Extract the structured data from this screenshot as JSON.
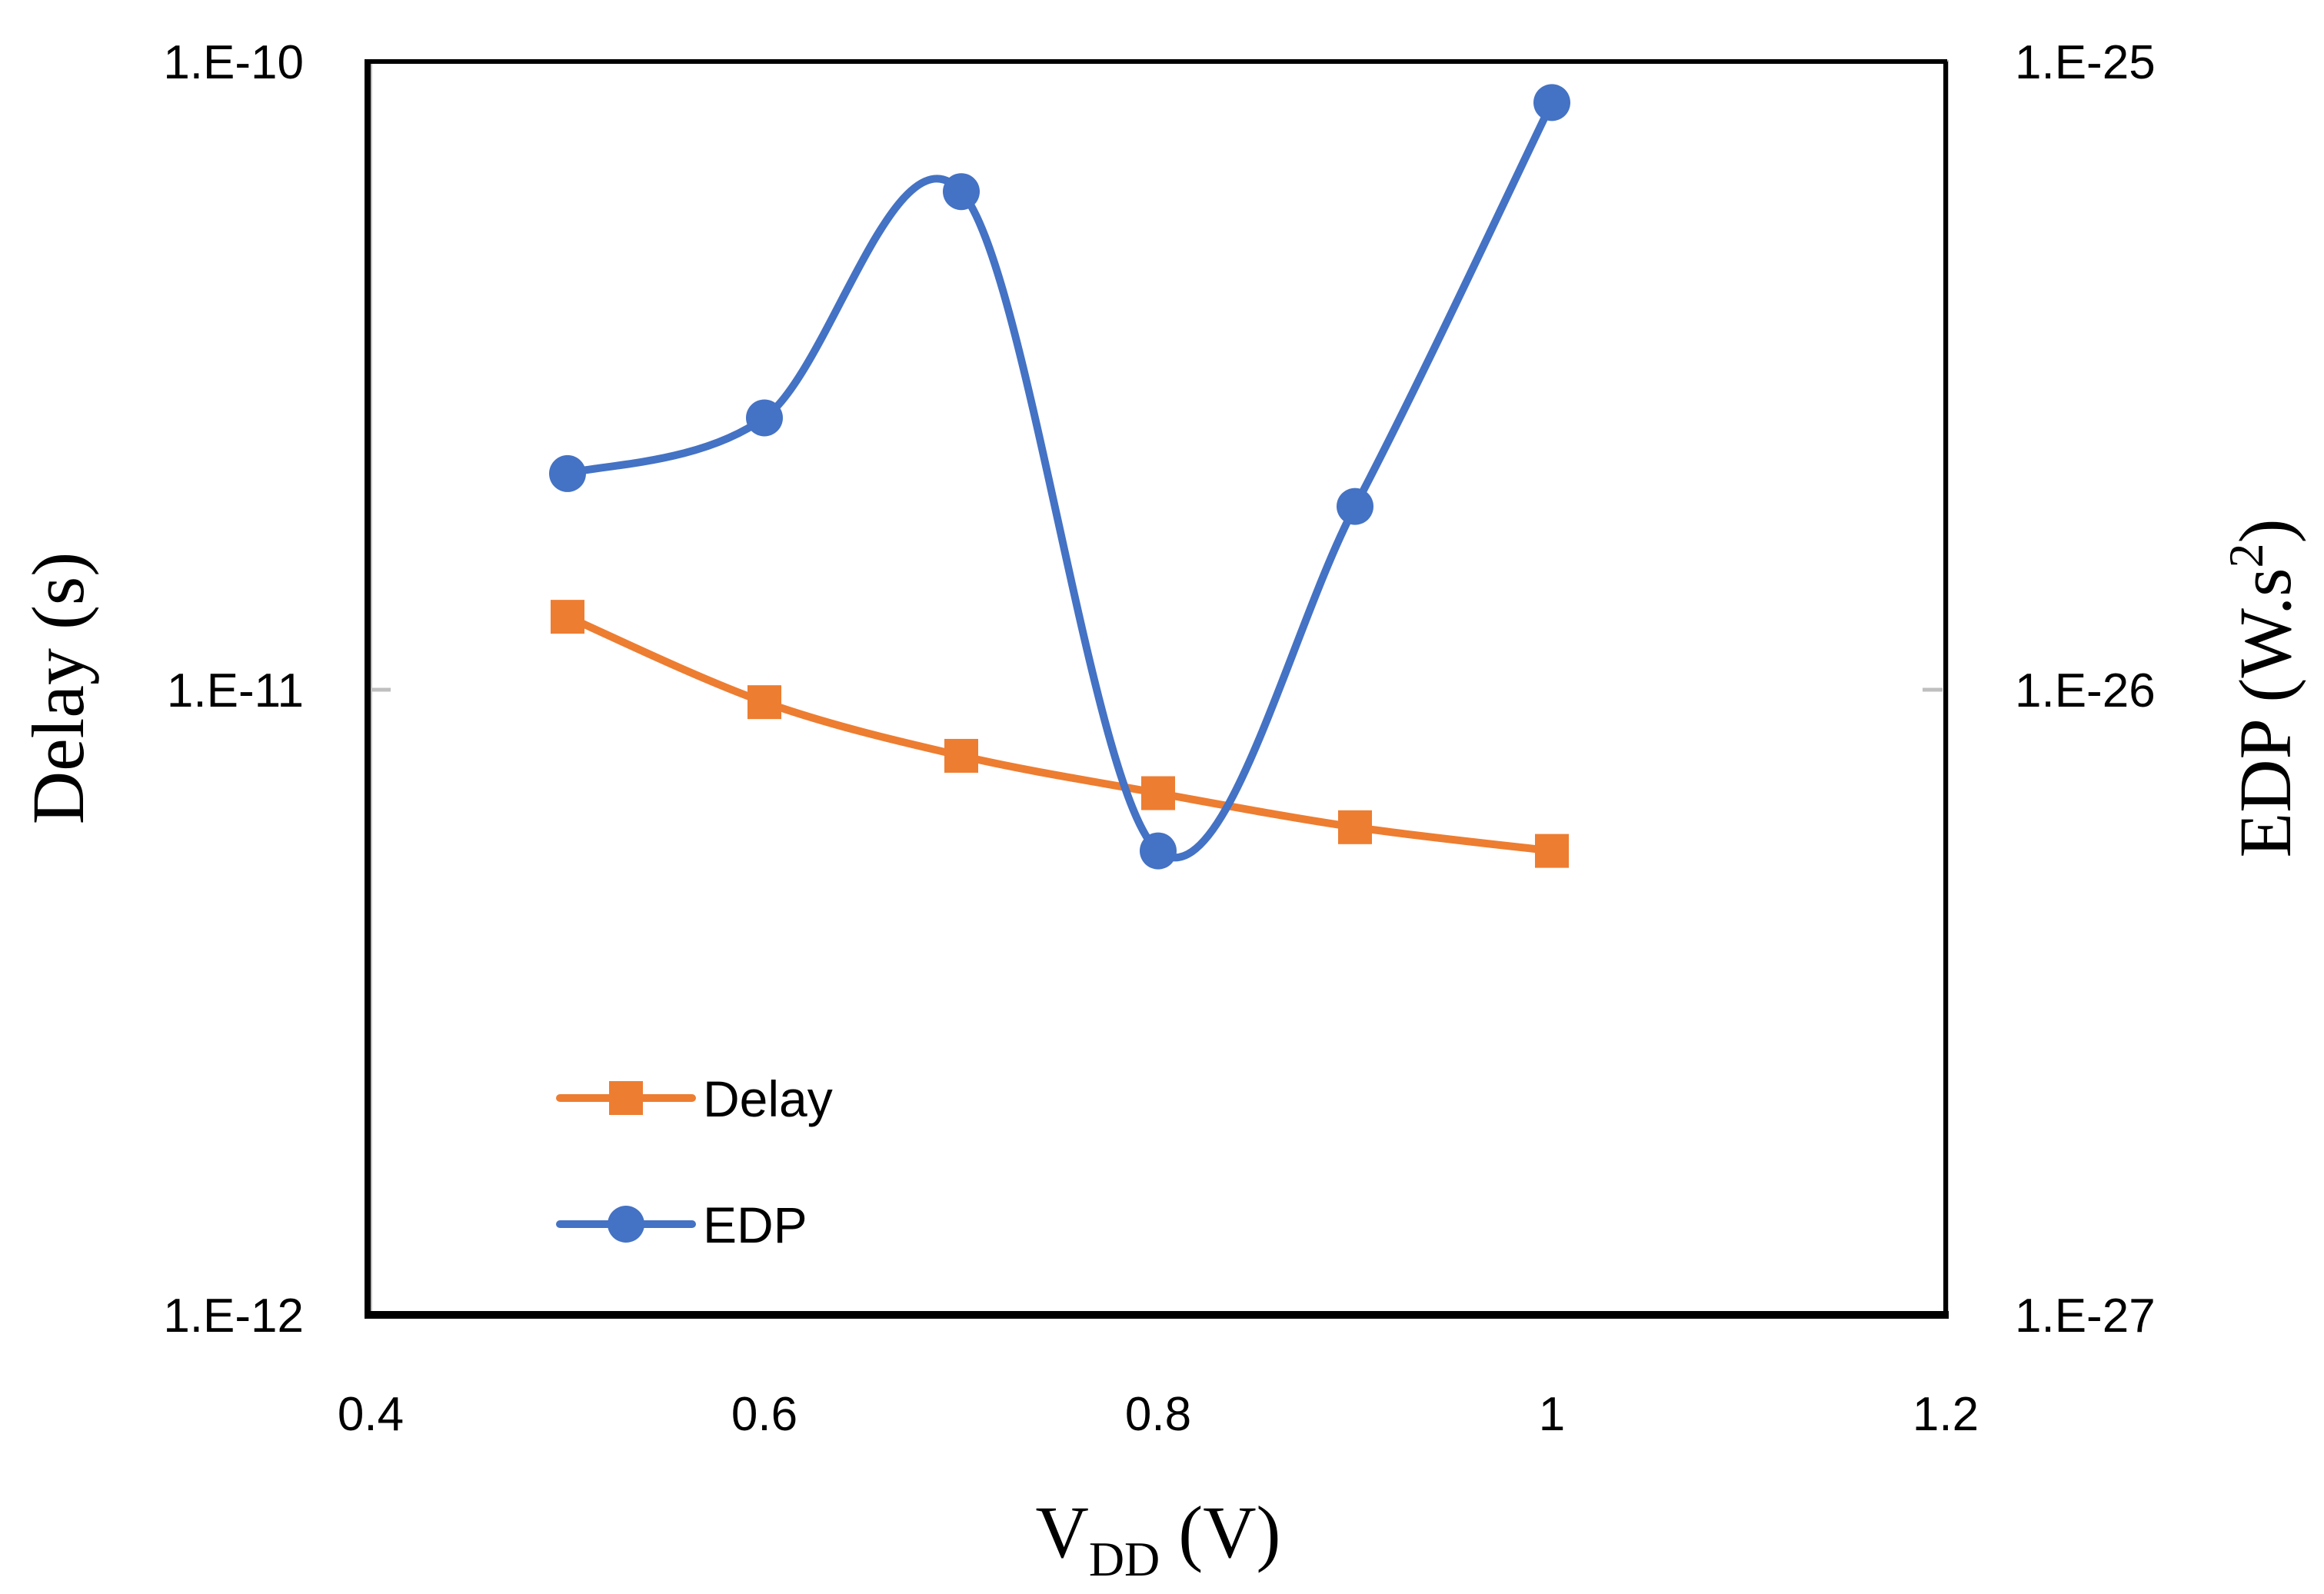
{
  "chart_data": {
    "type": "line",
    "x": [
      0.5,
      0.6,
      0.7,
      0.8,
      0.9,
      1.0
    ],
    "xlabel": {
      "main": "V",
      "subscript": "DD",
      "unit": " (V)"
    },
    "xlim": [
      0.4,
      1.2
    ],
    "xticks": [
      "0.4",
      "0.6",
      "0.8",
      "1",
      "1.2"
    ],
    "y_left": {
      "label": "Delay (s)",
      "scale": "log",
      "lim": [
        1e-12,
        1e-10
      ],
      "ticks": [
        "1.E-12",
        "1.E-11",
        "1.E-10"
      ]
    },
    "y_right": {
      "label": "EDP (W.s",
      "label_sup": "2",
      "label_close": ")",
      "scale": "log",
      "lim": [
        1e-27,
        1e-25
      ],
      "ticks": [
        "1.E-27",
        "1.E-26",
        "1.E-25"
      ]
    },
    "series": [
      {
        "name": "Delay",
        "axis": "left",
        "color": "#ED7D31",
        "marker": "square",
        "smooth": true,
        "values": [
          1.3e-11,
          9.5e-12,
          7.8e-12,
          6.8e-12,
          6e-12,
          5.5e-12
        ]
      },
      {
        "name": "EDP",
        "axis": "right",
        "color": "#4472C4",
        "marker": "circle",
        "smooth": true,
        "values": [
          2.2e-26,
          2.7e-26,
          6.2e-26,
          5.5e-27,
          1.95e-26,
          8.6e-26
        ]
      }
    ],
    "legend": {
      "position": "bottom-left",
      "entries": [
        "Delay",
        "EDP"
      ]
    },
    "grid": false
  }
}
